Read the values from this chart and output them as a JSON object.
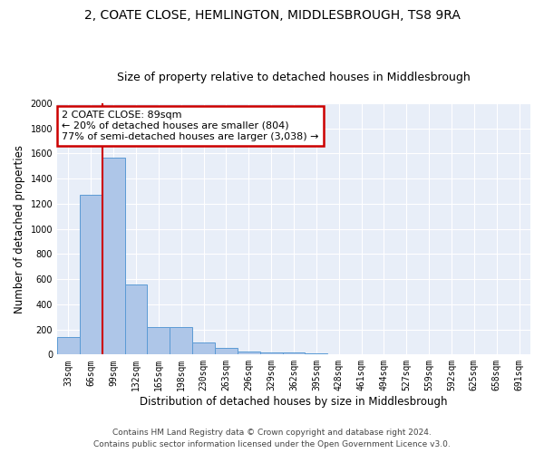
{
  "title": "2, COATE CLOSE, HEMLINGTON, MIDDLESBROUGH, TS8 9RA",
  "subtitle": "Size of property relative to detached houses in Middlesbrough",
  "xlabel": "Distribution of detached houses by size in Middlesbrough",
  "ylabel": "Number of detached properties",
  "footer_line1": "Contains HM Land Registry data © Crown copyright and database right 2024.",
  "footer_line2": "Contains public sector information licensed under the Open Government Licence v3.0.",
  "bin_labels": [
    "33sqm",
    "66sqm",
    "99sqm",
    "132sqm",
    "165sqm",
    "198sqm",
    "230sqm",
    "263sqm",
    "296sqm",
    "329sqm",
    "362sqm",
    "395sqm",
    "428sqm",
    "461sqm",
    "494sqm",
    "527sqm",
    "559sqm",
    "592sqm",
    "625sqm",
    "658sqm",
    "691sqm"
  ],
  "bar_values": [
    140,
    1270,
    1570,
    560,
    220,
    220,
    95,
    50,
    25,
    20,
    20,
    10,
    0,
    0,
    0,
    0,
    0,
    0,
    0,
    0,
    0
  ],
  "bar_color": "#aec6e8",
  "bar_edge_color": "#5b9bd5",
  "ylim": [
    0,
    2000
  ],
  "yticks": [
    0,
    200,
    400,
    600,
    800,
    1000,
    1200,
    1400,
    1600,
    1800,
    2000
  ],
  "red_line_color": "#cc0000",
  "red_line_x": 1.5,
  "annotation_text_line1": "2 COATE CLOSE: 89sqm",
  "annotation_text_line2": "← 20% of detached houses are smaller (804)",
  "annotation_text_line3": "77% of semi-detached houses are larger (3,038) →",
  "annotation_box_color": "#cc0000",
  "fig_background": "#ffffff",
  "axes_background": "#e8eef8",
  "grid_color": "#ffffff",
  "title_fontsize": 10,
  "subtitle_fontsize": 9,
  "axis_label_fontsize": 8.5,
  "tick_fontsize": 7,
  "annotation_fontsize": 8,
  "footer_fontsize": 6.5
}
